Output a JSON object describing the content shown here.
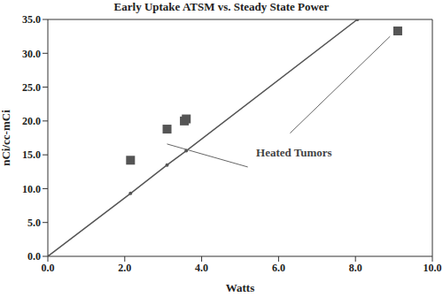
{
  "chart_data": {
    "type": "scatter",
    "title": "Early Uptake ATSM vs. Steady State Power",
    "x_label": "Watts",
    "y_label": "nCi/cc-mCi",
    "xlim": [
      0,
      10
    ],
    "ylim": [
      0,
      35
    ],
    "xticks": [
      {
        "value": 0,
        "label": "0.0"
      },
      {
        "value": 2,
        "label": "2.0"
      },
      {
        "value": 4,
        "label": "4.0"
      },
      {
        "value": 6,
        "label": "6.0"
      },
      {
        "value": 8,
        "label": "8.0"
      },
      {
        "value": 10,
        "label": "10.0"
      }
    ],
    "yticks": [
      {
        "value": 0,
        "label": "0.0"
      },
      {
        "value": 5,
        "label": "5.0"
      },
      {
        "value": 10,
        "label": "10.0"
      },
      {
        "value": 15,
        "label": "15.0"
      },
      {
        "value": 20,
        "label": "20.0"
      },
      {
        "value": 25,
        "label": "25.0"
      },
      {
        "value": 30,
        "label": "30.0"
      },
      {
        "value": 35,
        "label": "35.0"
      }
    ],
    "series": [
      {
        "type": "scatter",
        "marker": "square",
        "color": "#555555",
        "x": [
          2.15,
          3.1,
          3.55,
          3.6,
          9.1
        ],
        "values": [
          14.2,
          18.8,
          20.0,
          20.3,
          33.3
        ]
      },
      {
        "type": "line",
        "marker": "dot",
        "line_style": "solid",
        "color": "#555555",
        "x": [
          0,
          2.15,
          3.1,
          3.6,
          8.05
        ],
        "values": [
          0,
          9.3,
          13.5,
          15.6,
          35
        ]
      }
    ],
    "annotations": [
      {
        "text": "Heated Tumors"
      }
    ]
  }
}
